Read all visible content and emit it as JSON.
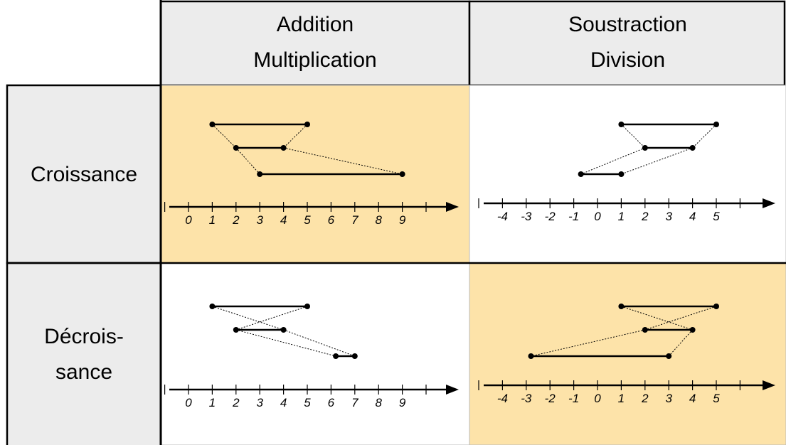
{
  "highlight_color": "#fde3a9",
  "columns": [
    {
      "lines": [
        "Addition",
        "Multiplication"
      ]
    },
    {
      "lines": [
        "Soustraction",
        "Division"
      ]
    }
  ],
  "rows": [
    {
      "lines": [
        "Croissance"
      ]
    },
    {
      "lines": [
        "Décrois-",
        "sance"
      ]
    }
  ],
  "cells": [
    [
      {
        "highlighted": true,
        "ticks": [
          0,
          1,
          2,
          3,
          4,
          5,
          6,
          7,
          8,
          9
        ],
        "segments": [
          {
            "from": 1,
            "to": 5
          },
          {
            "from": 2,
            "to": 4
          },
          {
            "from": 3,
            "to": 9
          }
        ]
      },
      {
        "highlighted": false,
        "ticks": [
          -4,
          -3,
          -2,
          -1,
          0,
          1,
          2,
          3,
          4,
          5
        ],
        "segments": [
          {
            "from": 1,
            "to": 5
          },
          {
            "from": 2,
            "to": 4
          },
          {
            "from": -0.7,
            "to": 1
          }
        ]
      }
    ],
    [
      {
        "highlighted": false,
        "ticks": [
          0,
          1,
          2,
          3,
          4,
          5,
          6,
          7,
          8,
          9
        ],
        "segments": [
          {
            "from": 1,
            "to": 5
          },
          {
            "from": 2,
            "to": 4
          },
          {
            "from": 6.2,
            "to": 7
          }
        ]
      },
      {
        "highlighted": true,
        "ticks": [
          -4,
          -3,
          -2,
          -1,
          0,
          1,
          2,
          3,
          4,
          5
        ],
        "segments": [
          {
            "from": 1,
            "to": 5
          },
          {
            "from": 2,
            "to": 4
          },
          {
            "from": -2.8,
            "to": 3
          }
        ]
      }
    ]
  ]
}
